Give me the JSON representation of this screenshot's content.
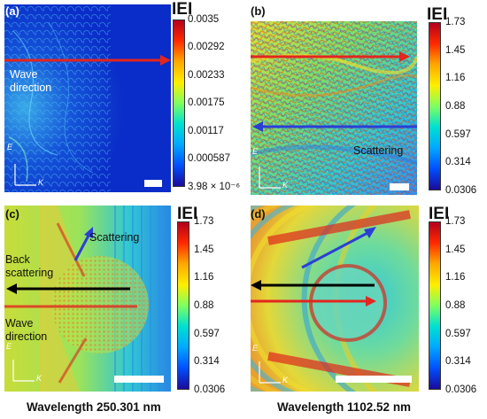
{
  "panels": [
    {
      "label": "(a)",
      "colorbar": {
        "title": "IEI",
        "ticks": [
          "0.0035",
          "0.00292",
          "0.00233",
          "0.00175",
          "0.00117",
          "0.000587",
          "3.98 × 10⁻⁶"
        ]
      },
      "annotations": {
        "wave_direction": "Wave\ndirection"
      },
      "axes": {
        "vertical": "E",
        "horizontal": "K"
      }
    },
    {
      "label": "(b)",
      "colorbar": {
        "title": "IEI",
        "ticks": [
          "1.73",
          "1.45",
          "1.16",
          "0.88",
          "0.597",
          "0.314",
          "0.0306"
        ]
      },
      "annotations": {
        "scattering": "Scattering"
      },
      "axes": {
        "vertical": "E",
        "horizontal": "K"
      }
    },
    {
      "label": "(c)",
      "colorbar": {
        "title": "IEI",
        "ticks": [
          "1.73",
          "1.45",
          "1.16",
          "0.88",
          "0.597",
          "0.314",
          "0.0306"
        ]
      },
      "annotations": {
        "scattering": "Scattering",
        "back_scattering": "Back\nscattering",
        "wave_direction": "Wave\ndirection"
      },
      "axes": {
        "vertical": "E",
        "horizontal": "K"
      }
    },
    {
      "label": "(d)",
      "colorbar": {
        "title": "IEI",
        "ticks": [
          "1.73",
          "1.45",
          "1.16",
          "0.88",
          "0.597",
          "0.314",
          "0.0306"
        ]
      },
      "annotations": {},
      "axes": {
        "vertical": "E",
        "horizontal": "K"
      }
    }
  ],
  "captions": {
    "left": "Wavelength 250.301 nm",
    "right": "Wavelength 1102.52 nm"
  },
  "colors": {
    "arrow_red": "#e3261f",
    "arrow_blue": "#2a3fd6",
    "arrow_black": "#000000",
    "scale_min": "#1a0a9a",
    "scale_max": "#b3001b"
  }
}
